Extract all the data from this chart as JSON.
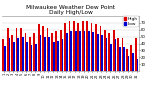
{
  "title": "Milwaukee Weather Dew Point\nDaily High/Low",
  "title_fontsize": 4.2,
  "background_color": "#ffffff",
  "bar_width": 0.4,
  "high_color": "#dd0000",
  "low_color": "#0000cc",
  "days": [
    1,
    2,
    3,
    4,
    5,
    6,
    7,
    8,
    9,
    10,
    11,
    12,
    13,
    14,
    15,
    16,
    17,
    18,
    19,
    20,
    21,
    22,
    23,
    24,
    25,
    26,
    27,
    28,
    29,
    30,
    31
  ],
  "highs": [
    46,
    62,
    52,
    62,
    62,
    55,
    50,
    55,
    68,
    65,
    62,
    55,
    58,
    60,
    70,
    72,
    72,
    70,
    72,
    72,
    70,
    68,
    65,
    60,
    55,
    60,
    48,
    48,
    32,
    38,
    48
  ],
  "lows": [
    36,
    48,
    42,
    48,
    50,
    42,
    38,
    40,
    52,
    50,
    50,
    42,
    44,
    46,
    55,
    58,
    58,
    58,
    58,
    58,
    56,
    54,
    52,
    48,
    40,
    46,
    35,
    35,
    22,
    26,
    18
  ],
  "ylim": [
    0,
    80
  ],
  "yticks": [
    10,
    20,
    30,
    40,
    50,
    60,
    70
  ],
  "ytick_fontsize": 2.8,
  "xtick_fontsize": 2.5,
  "grid_color": "#cccccc",
  "legend_high": "High",
  "legend_low": "Low",
  "legend_fontsize": 3.2,
  "spine_color": "#888888"
}
